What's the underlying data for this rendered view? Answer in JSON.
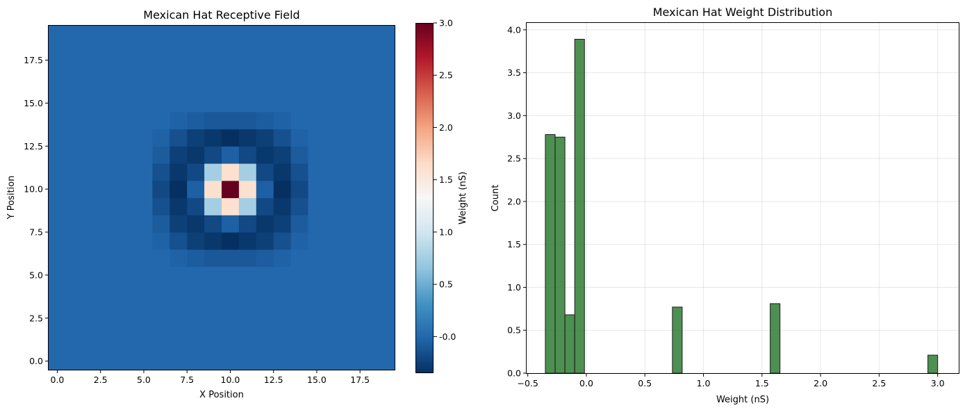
{
  "chart_data": [
    {
      "type": "heatmap",
      "title": "Mexican Hat Receptive Field",
      "xlabel": "X Position",
      "ylabel": "Y Position",
      "xlim": [
        -0.5,
        19.5
      ],
      "ylim": [
        -0.5,
        19.5
      ],
      "xticks": [
        0.0,
        2.5,
        5.0,
        7.5,
        10.0,
        12.5,
        15.0,
        17.5
      ],
      "yticks": [
        0.0,
        2.5,
        5.0,
        7.5,
        10.0,
        12.5,
        15.0,
        17.5
      ],
      "colormap": "RdBu_r",
      "grid_size": [
        20,
        20
      ],
      "center": [
        10,
        10
      ],
      "values_description": "all other cells = 0",
      "cells": [
        {
          "x": 10,
          "y": 10,
          "v": 3.0
        },
        {
          "x": 9,
          "y": 10,
          "v": 1.6
        },
        {
          "x": 11,
          "y": 10,
          "v": 1.6
        },
        {
          "x": 10,
          "y": 9,
          "v": 1.6
        },
        {
          "x": 10,
          "y": 11,
          "v": 1.6
        },
        {
          "x": 9,
          "y": 9,
          "v": 0.75
        },
        {
          "x": 11,
          "y": 9,
          "v": 0.75
        },
        {
          "x": 9,
          "y": 11,
          "v": 0.75
        },
        {
          "x": 11,
          "y": 11,
          "v": 0.75
        },
        {
          "x": 8,
          "y": 10,
          "v": -0.05
        },
        {
          "x": 12,
          "y": 10,
          "v": -0.05
        },
        {
          "x": 10,
          "y": 8,
          "v": -0.05
        },
        {
          "x": 10,
          "y": 12,
          "v": -0.05
        },
        {
          "x": 8,
          "y": 9,
          "v": -0.2
        },
        {
          "x": 8,
          "y": 11,
          "v": -0.2
        },
        {
          "x": 12,
          "y": 9,
          "v": -0.2
        },
        {
          "x": 12,
          "y": 11,
          "v": -0.2
        },
        {
          "x": 9,
          "y": 8,
          "v": -0.2
        },
        {
          "x": 11,
          "y": 8,
          "v": -0.2
        },
        {
          "x": 9,
          "y": 12,
          "v": -0.2
        },
        {
          "x": 11,
          "y": 12,
          "v": -0.2
        },
        {
          "x": 8,
          "y": 8,
          "v": -0.3
        },
        {
          "x": 12,
          "y": 8,
          "v": -0.3
        },
        {
          "x": 8,
          "y": 12,
          "v": -0.3
        },
        {
          "x": 12,
          "y": 12,
          "v": -0.3
        },
        {
          "x": 7,
          "y": 10,
          "v": -0.35
        },
        {
          "x": 13,
          "y": 10,
          "v": -0.35
        },
        {
          "x": 10,
          "y": 7,
          "v": -0.35
        },
        {
          "x": 10,
          "y": 13,
          "v": -0.35
        },
        {
          "x": 7,
          "y": 9,
          "v": -0.3
        },
        {
          "x": 7,
          "y": 11,
          "v": -0.3
        },
        {
          "x": 13,
          "y": 9,
          "v": -0.3
        },
        {
          "x": 13,
          "y": 11,
          "v": -0.3
        },
        {
          "x": 9,
          "y": 7,
          "v": -0.3
        },
        {
          "x": 11,
          "y": 7,
          "v": -0.3
        },
        {
          "x": 9,
          "y": 13,
          "v": -0.3
        },
        {
          "x": 11,
          "y": 13,
          "v": -0.3
        },
        {
          "x": 7,
          "y": 8,
          "v": -0.25
        },
        {
          "x": 7,
          "y": 12,
          "v": -0.25
        },
        {
          "x": 13,
          "y": 8,
          "v": -0.25
        },
        {
          "x": 13,
          "y": 12,
          "v": -0.25
        },
        {
          "x": 8,
          "y": 7,
          "v": -0.25
        },
        {
          "x": 12,
          "y": 7,
          "v": -0.25
        },
        {
          "x": 8,
          "y": 13,
          "v": -0.25
        },
        {
          "x": 12,
          "y": 13,
          "v": -0.25
        },
        {
          "x": 6,
          "y": 10,
          "v": -0.2
        },
        {
          "x": 14,
          "y": 10,
          "v": -0.2
        },
        {
          "x": 10,
          "y": 6,
          "v": -0.1
        },
        {
          "x": 10,
          "y": 14,
          "v": -0.1
        },
        {
          "x": 6,
          "y": 9,
          "v": -0.15
        },
        {
          "x": 6,
          "y": 11,
          "v": -0.15
        },
        {
          "x": 14,
          "y": 9,
          "v": -0.15
        },
        {
          "x": 14,
          "y": 11,
          "v": -0.15
        },
        {
          "x": 9,
          "y": 6,
          "v": -0.1
        },
        {
          "x": 11,
          "y": 6,
          "v": -0.1
        },
        {
          "x": 9,
          "y": 14,
          "v": -0.1
        },
        {
          "x": 11,
          "y": 14,
          "v": -0.1
        },
        {
          "x": 7,
          "y": 7,
          "v": -0.15
        },
        {
          "x": 13,
          "y": 7,
          "v": -0.15
        },
        {
          "x": 7,
          "y": 13,
          "v": -0.15
        },
        {
          "x": 13,
          "y": 13,
          "v": -0.15
        },
        {
          "x": 6,
          "y": 8,
          "v": -0.08
        },
        {
          "x": 6,
          "y": 12,
          "v": -0.08
        },
        {
          "x": 14,
          "y": 8,
          "v": -0.08
        },
        {
          "x": 14,
          "y": 12,
          "v": -0.08
        },
        {
          "x": 8,
          "y": 6,
          "v": -0.07
        },
        {
          "x": 12,
          "y": 6,
          "v": -0.07
        },
        {
          "x": 8,
          "y": 14,
          "v": -0.07
        },
        {
          "x": 12,
          "y": 14,
          "v": -0.07
        },
        {
          "x": 7,
          "y": 6,
          "v": -0.04
        },
        {
          "x": 13,
          "y": 6,
          "v": -0.04
        },
        {
          "x": 7,
          "y": 14,
          "v": -0.04
        },
        {
          "x": 13,
          "y": 14,
          "v": -0.04
        },
        {
          "x": 6,
          "y": 7,
          "v": -0.04
        },
        {
          "x": 14,
          "y": 7,
          "v": -0.04
        },
        {
          "x": 6,
          "y": 13,
          "v": -0.04
        },
        {
          "x": 14,
          "y": 13,
          "v": -0.04
        }
      ],
      "colorbar": {
        "label": "Weight (nS)",
        "range": [
          -0.35,
          3.0
        ],
        "ticks": [
          -0.0,
          0.5,
          1.0,
          1.5,
          2.0,
          2.5,
          3.0
        ],
        "tick_labels": [
          "-0.0",
          "0.5",
          "1.0",
          "1.5",
          "2.0",
          "2.5",
          "3.0"
        ]
      }
    },
    {
      "type": "bar",
      "title": "Mexican Hat Weight Distribution",
      "xlabel": "Weight (nS)",
      "ylabel": "Count",
      "xlim": [
        -0.51,
        3.18
      ],
      "ylim": [
        0,
        4.08
      ],
      "xticks": [
        -0.5,
        0.0,
        0.5,
        1.0,
        1.5,
        2.0,
        2.5,
        3.0
      ],
      "yticks": [
        0.0,
        0.5,
        1.0,
        1.5,
        2.0,
        2.5,
        3.0,
        3.5,
        4.0
      ],
      "grid": true,
      "bar_color": "#2e7d32",
      "bin_width": 0.0835,
      "bins": [
        {
          "left": -0.35,
          "count": 2.78
        },
        {
          "left": -0.2665,
          "count": 2.75
        },
        {
          "left": -0.183,
          "count": 0.68
        },
        {
          "left": -0.0995,
          "count": 3.89
        },
        {
          "left": 0.735,
          "count": 0.77
        },
        {
          "left": 1.57,
          "count": 0.81
        },
        {
          "left": 2.9165,
          "count": 0.21
        }
      ]
    }
  ]
}
